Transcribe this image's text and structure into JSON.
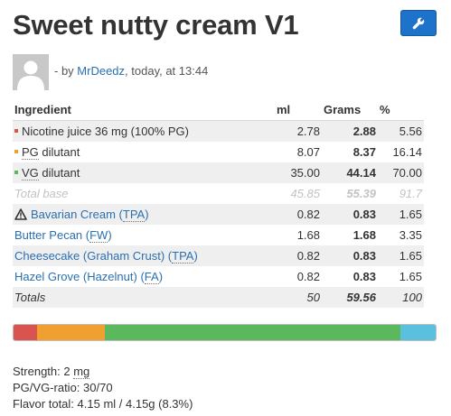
{
  "recipe": {
    "title": "Sweet nutty cream V1",
    "byline_prefix": "- by ",
    "author": "MrDeedz",
    "byline_suffix": ", today, at 13:44"
  },
  "table": {
    "headers": {
      "ingredient": "Ingredient",
      "ml": "ml",
      "grams": "Grams",
      "pct": "%"
    },
    "base_rows": [
      {
        "name": "Nicotine juice 36 mg (100% PG)",
        "ml": "2.78",
        "grams": "2.88",
        "pct": "5.56",
        "color": "#d9534f"
      },
      {
        "prefix": "",
        "abbr": "PG",
        "suffix": " dilutant",
        "ml": "8.07",
        "grams": "8.37",
        "pct": "16.14",
        "color": "#f0a030"
      },
      {
        "prefix": "",
        "abbr": "VG",
        "suffix": " dilutant",
        "ml": "35.00",
        "grams": "44.14",
        "pct": "70.00",
        "color": "#5cb85c"
      }
    ],
    "total_base": {
      "label": "Total base",
      "ml": "45.85",
      "grams": "55.39",
      "pct": "91.7"
    },
    "flavors": [
      {
        "name_prefix": "Bavarian Cream (",
        "vendor": "TPA",
        "name_suffix": ")",
        "ml": "0.82",
        "grams": "0.83",
        "pct": "1.65",
        "warning": true
      },
      {
        "name_prefix": "Butter Pecan (",
        "vendor": "FW",
        "name_suffix": ")",
        "ml": "1.68",
        "grams": "1.68",
        "pct": "3.35",
        "warning": false
      },
      {
        "name_prefix": "Cheesecake (Graham Crust) (",
        "vendor": "TPA",
        "name_suffix": ")",
        "ml": "0.82",
        "grams": "0.83",
        "pct": "1.65",
        "warning": false
      },
      {
        "name_prefix": "Hazel Grove (Hazelnut) (",
        "vendor": "FA",
        "name_suffix": ")",
        "ml": "0.82",
        "grams": "0.83",
        "pct": "1.65",
        "warning": false
      }
    ],
    "totals": {
      "label": "Totals",
      "ml": "50",
      "grams": "59.56",
      "pct": "100"
    }
  },
  "composition_bar": [
    {
      "name": "nicotine",
      "pct": 5.56,
      "color": "#d9534f"
    },
    {
      "name": "pg",
      "pct": 16.14,
      "color": "#f0a030"
    },
    {
      "name": "vg",
      "pct": 70.0,
      "color": "#5cb85c"
    },
    {
      "name": "flavors",
      "pct": 8.3,
      "color": "#5bc0de"
    }
  ],
  "stats": {
    "strength_label": "Strength: 2 ",
    "strength_unit": "mg",
    "ratio": "PG/VG-ratio: 30/70",
    "flavor_total": "Flavor total: 4.15 ml / 4.15g (8.3%)"
  },
  "icons": {
    "edit": "wrench-icon",
    "avatar": "user-icon",
    "warning": "warning-triangle-icon"
  }
}
